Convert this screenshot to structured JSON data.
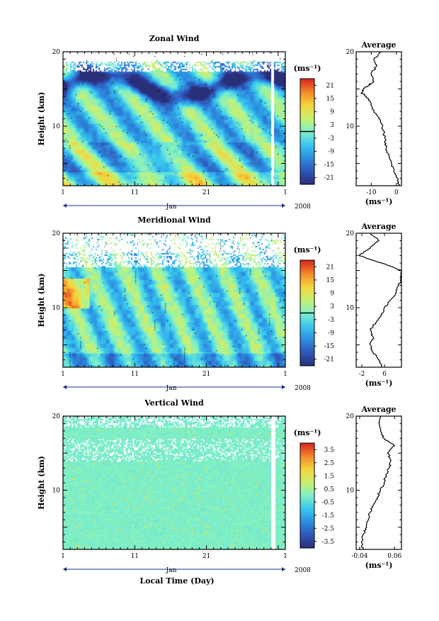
{
  "chart_data": [
    {
      "type": "heatmap",
      "title": "Zonal Wind",
      "ylabel": "Height (km)",
      "y_ticks": [
        "20",
        "10"
      ],
      "ylim": [
        2,
        20
      ],
      "x_ticks": [
        "1",
        "11",
        "21",
        "1"
      ],
      "month_label": "Jan",
      "year_label": "2008",
      "colorbar": {
        "unit": "(ms⁻¹)",
        "ticks": [
          "21",
          "15",
          "9",
          "3",
          "-3",
          "-9",
          "-15",
          "-21"
        ],
        "range": [
          -24,
          24
        ],
        "zero_line": 0
      },
      "profile": {
        "title": "Average",
        "x_ticks": [
          "-10",
          "0"
        ],
        "xlim": [
          -16,
          2
        ],
        "xlabel": "(ms⁻¹)",
        "y_ticks": [
          "20",
          "10"
        ],
        "heights": [
          2,
          3,
          4,
          5,
          6,
          7,
          8,
          9,
          10,
          11,
          12,
          13,
          14,
          14.5,
          15,
          15.5,
          16,
          17,
          18,
          19,
          20
        ],
        "values": [
          1,
          0.5,
          -1,
          -2,
          -3,
          -4,
          -4.5,
          -5,
          -5.5,
          -7,
          -9,
          -10,
          -12,
          -14,
          -13,
          -11,
          -9,
          -10,
          -8,
          -9,
          -6
        ]
      }
    },
    {
      "type": "heatmap",
      "title": "Meridional Wind",
      "ylabel": "Height (km)",
      "y_ticks": [
        "20",
        "10"
      ],
      "ylim": [
        2,
        20
      ],
      "x_ticks": [
        "1",
        "11",
        "21",
        "1"
      ],
      "month_label": "Jan",
      "year_label": "2008",
      "colorbar": {
        "unit": "(ms⁻¹)",
        "ticks": [
          "21",
          "15",
          "9",
          "3",
          "-3",
          "-9",
          "-15",
          "-21"
        ],
        "range": [
          -24,
          24
        ],
        "zero_line": 0
      },
      "profile": {
        "title": "Average",
        "x_ticks": [
          "-2",
          "6"
        ],
        "xlim": [
          -4,
          12
        ],
        "xlabel": "(ms⁻¹)",
        "y_ticks": [
          "20",
          "10"
        ],
        "heights": [
          2,
          3,
          4,
          5,
          6,
          7,
          8,
          9,
          10,
          11,
          12,
          13,
          14,
          15,
          16,
          17,
          18,
          19,
          20
        ],
        "values": [
          5,
          4,
          2,
          1,
          2,
          1,
          3,
          5,
          6,
          8,
          10,
          11,
          12,
          12,
          5,
          -3,
          1,
          4,
          1
        ]
      }
    },
    {
      "type": "heatmap",
      "title": "Vertical Wind",
      "ylabel": "Height (km)",
      "xlabel": "Local Time (Day)",
      "y_ticks": [
        "20",
        "10"
      ],
      "ylim": [
        2,
        20
      ],
      "x_ticks": [
        "1",
        "11",
        "21",
        "1"
      ],
      "month_label": "Jan",
      "year_label": "2008",
      "colorbar": {
        "unit": "(ms⁻¹)",
        "ticks": [
          "3.5",
          "2.5",
          "1.5",
          "0.5",
          "-0.5",
          "-1.5",
          "-2.5",
          "-3.5"
        ],
        "range": [
          -4,
          4
        ],
        "zero_line": null
      },
      "profile": {
        "title": "Average",
        "x_ticks": [
          "-0.04",
          "0.06"
        ],
        "xlim": [
          -0.05,
          0.08
        ],
        "xlabel": "(ms⁻¹)",
        "y_ticks": [
          "20",
          "10"
        ],
        "heights": [
          2,
          3,
          4,
          5,
          6,
          7,
          8,
          9,
          10,
          11,
          12,
          13,
          14,
          15,
          16,
          17,
          18,
          19,
          20
        ],
        "values": [
          -0.03,
          -0.035,
          -0.03,
          -0.02,
          -0.015,
          -0.01,
          0.0,
          0.01,
          0.02,
          0.03,
          0.035,
          0.045,
          0.05,
          0.04,
          0.06,
          0.03,
          0.02,
          0.015,
          0.02
        ]
      }
    }
  ]
}
